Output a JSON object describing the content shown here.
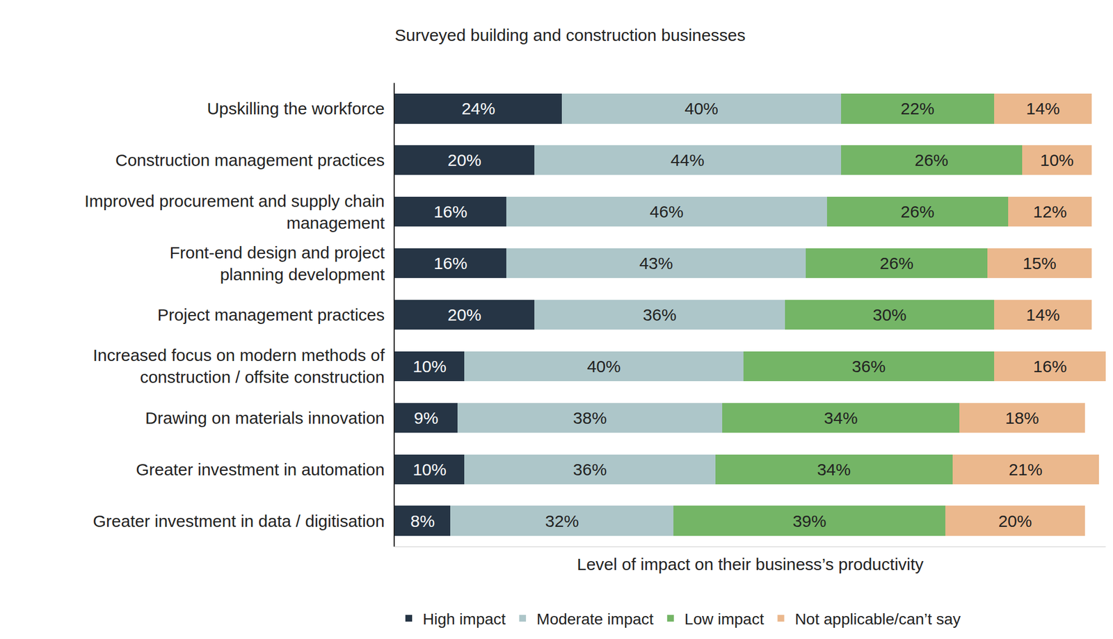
{
  "chart_data": {
    "type": "bar",
    "orientation": "horizontal",
    "stacked": true,
    "data_labels": true,
    "tick_labels": "y",
    "grid": false,
    "legend": "bottom",
    "title": "Surveyed building and construction businesses",
    "x_label": "Level of impact on their business’s productivity",
    "xlim": [
      0,
      102
    ],
    "categories": [
      "Upskilling the workforce",
      "Construction management practices",
      "Improved procurement and supply chain\nmanagement",
      "Front-end design and project\nplanning development",
      "Project management practices",
      "Increased focus on modern methods of\nconstruction / offsite construction",
      "Drawing on materials innovation",
      "Greater investment in automation",
      "Greater investment in data / digitisation"
    ],
    "series": [
      {
        "name": "High impact",
        "color": "#263545",
        "values": [
          24,
          20,
          16,
          16,
          20,
          10,
          9,
          10,
          8
        ],
        "value_labels": [
          "24%",
          "20%",
          "16%",
          "16%",
          "20%",
          "10%",
          "9%",
          "10%",
          "8%"
        ]
      },
      {
        "name": "Moderate impact",
        "color": "#adc6c9",
        "values": [
          40,
          44,
          46,
          43,
          36,
          40,
          38,
          36,
          32
        ],
        "value_labels": [
          "40%",
          "44%",
          "46%",
          "43%",
          "36%",
          "40%",
          "38%",
          "36%",
          "32%"
        ]
      },
      {
        "name": "Low impact",
        "color": "#74b566",
        "values": [
          22,
          26,
          26,
          26,
          30,
          36,
          34,
          34,
          39
        ],
        "value_labels": [
          "22%",
          "26%",
          "26%",
          "26%",
          "30%",
          "36%",
          "34%",
          "34%",
          "39%"
        ]
      },
      {
        "name": "Not applicable/can’t say",
        "color": "#ebb88d",
        "values": [
          14,
          10,
          12,
          15,
          14,
          16,
          18,
          21,
          20
        ],
        "value_labels": [
          "14%",
          "10%",
          "12%",
          "15%",
          "14%",
          "16%",
          "18%",
          "21%",
          "20%"
        ]
      }
    ]
  }
}
